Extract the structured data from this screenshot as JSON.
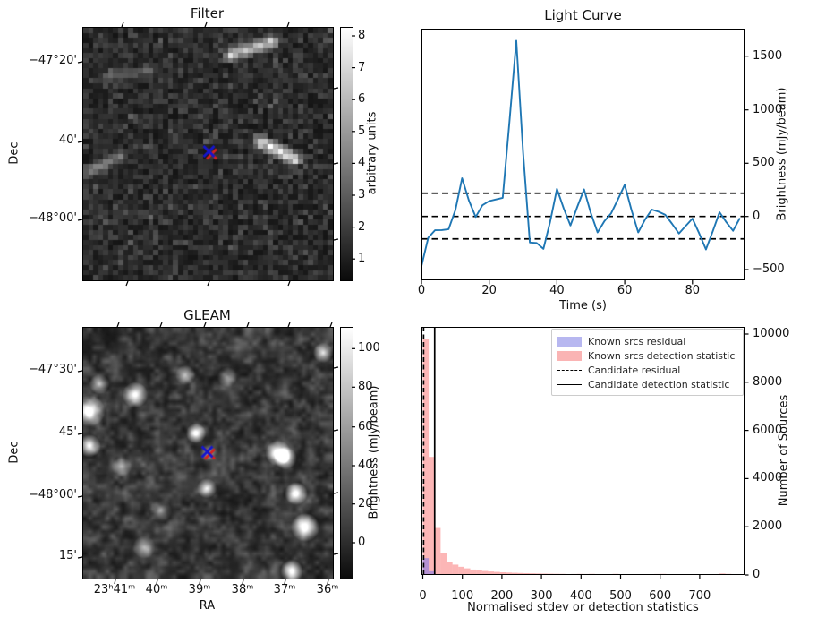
{
  "colors": {
    "line_blue": "#1f77b4",
    "known_residual_fill": "rgba(110,110,240,0.5)",
    "known_detstat_fill": "rgba(250,110,110,0.5)",
    "candidate_line": "#000000",
    "marker_blue": "#1515d0",
    "marker_red": "#d62020"
  },
  "panels": {
    "filter": {
      "title": "Filter",
      "ylabel": "Dec",
      "ytick_labels": [
        "−47°20'",
        "40'",
        "−48°00'"
      ],
      "colorbar": {
        "label": "arbitrary units",
        "ticks": [
          "8",
          "7",
          "6",
          "5",
          "4",
          "3",
          "2",
          "1"
        ]
      }
    },
    "light_curve": {
      "title": "Light Curve",
      "xlabel": "Time (s)",
      "ylabel": "Brightness (mJy/beam)",
      "xtick_labels": [
        "0",
        "20",
        "40",
        "60",
        "80"
      ],
      "ytick_labels": [
        "1500",
        "1000",
        "500",
        "0",
        "−500"
      ]
    },
    "gleam": {
      "title": "GLEAM",
      "xlabel": "RA",
      "ylabel": "Dec",
      "xtick_labels": [
        "23ʰ41ᵐ",
        "40ᵐ",
        "39ᵐ",
        "38ᵐ",
        "37ᵐ",
        "36ᵐ"
      ],
      "ytick_labels": [
        "−47°30'",
        "45'",
        "−48°00'",
        "15'"
      ],
      "colorbar": {
        "label": "Brightness (mJy/beam)",
        "ticks": [
          "100",
          "80",
          "60",
          "40",
          "20",
          "0"
        ]
      }
    },
    "histogram": {
      "xlabel": "Normalised stdev or detection statistics",
      "ylabel": "Number of Sources",
      "xtick_labels": [
        "0",
        "100",
        "200",
        "300",
        "400",
        "500",
        "600",
        "700"
      ],
      "ytick_labels": [
        "0",
        "2000",
        "4000",
        "6000",
        "8000",
        "10000"
      ],
      "legend": [
        {
          "label": "Known srcs residual",
          "swatch": "patch-blue"
        },
        {
          "label": "Known srcs detection statistic",
          "swatch": "patch-pink"
        },
        {
          "label": "Candidate residual",
          "swatch": "dashed-line"
        },
        {
          "label": "Candidate detection statistic",
          "swatch": "solid-line"
        }
      ]
    }
  },
  "chart_data": [
    {
      "type": "heatmap",
      "title": "Filter",
      "ylabel": "Dec",
      "ytick_labels": [
        "−47°20'",
        "40'",
        "−48°00'"
      ],
      "colorbar": {
        "label": "arbitrary units",
        "ticks": [
          1,
          2,
          3,
          4,
          5,
          6,
          7,
          8
        ],
        "range": [
          0.35,
          8.3
        ]
      },
      "image": "50x50 dark grayscale pixel noise, values mostly 1-3 arbitrary units",
      "marker_frac": {
        "x": 0.503,
        "y": 0.49,
        "blue_cross_over_red_cross": true
      },
      "bright_streaks_frac": [
        {
          "x1": 0.575,
          "y1": 0.1,
          "x2": 0.75,
          "y2": 0.045,
          "intensity": 0.85
        },
        {
          "x1": 0.695,
          "y1": 0.44,
          "x2": 0.84,
          "y2": 0.51,
          "intensity": 1.0
        },
        {
          "x1": 0.005,
          "y1": 0.56,
          "x2": 0.14,
          "y2": 0.5,
          "intensity": 0.55
        },
        {
          "x1": 0.08,
          "y1": 0.19,
          "x2": 0.26,
          "y2": 0.16,
          "intensity": 0.42
        }
      ]
    },
    {
      "type": "line",
      "title": "Light Curve",
      "xlabel": "Time (s)",
      "ylabel": "Brightness (mJy/beam)",
      "xticks": [
        0,
        20,
        40,
        60,
        80
      ],
      "yticks": [
        -500,
        0,
        500,
        1000,
        1500
      ],
      "xlim": [
        0,
        95.6
      ],
      "ylim": [
        -590,
        1760
      ],
      "dashed_hlines": [
        219,
        0,
        -211
      ],
      "x": [
        0,
        2,
        4,
        6,
        8,
        10,
        12,
        14,
        16,
        18,
        20,
        22,
        24,
        26,
        28,
        30,
        32,
        34,
        36,
        38,
        40,
        42,
        44,
        46,
        48,
        50,
        52,
        54,
        56,
        58,
        60,
        62,
        64,
        66,
        68,
        70,
        72,
        74,
        76,
        78,
        80,
        82,
        84,
        86,
        88,
        90,
        92,
        94
      ],
      "y": [
        -466,
        -200,
        -130,
        -128,
        -120,
        60,
        360,
        150,
        -5,
        105,
        145,
        160,
        175,
        900,
        1655,
        600,
        -245,
        -250,
        -305,
        -50,
        260,
        75,
        -85,
        90,
        255,
        30,
        -150,
        -45,
        30,
        160,
        298,
        60,
        -150,
        -30,
        65,
        45,
        15,
        -70,
        -160,
        -90,
        -20,
        -160,
        -310,
        -140,
        40,
        -55,
        -135,
        -15
      ]
    },
    {
      "type": "heatmap",
      "title": "GLEAM",
      "xlabel": "RA",
      "ylabel": "Dec",
      "xtick_labels": [
        "23ʰ41ᵐ",
        "40ᵐ",
        "39ᵐ",
        "38ᵐ",
        "37ᵐ",
        "36ᵐ"
      ],
      "ytick_labels": [
        "−47°30'",
        "45'",
        "−48°00'",
        "15'"
      ],
      "colorbar": {
        "label": "Brightness (mJy/beam)",
        "ticks": [
          0,
          20,
          40,
          60,
          80,
          100
        ],
        "range": [
          -18,
          112
        ]
      },
      "image": "smooth blurred grayscale sky map with bright point sources",
      "marker_frac": {
        "x": 0.495,
        "y": 0.493,
        "blue_cross_over_red_cross": true
      },
      "bright_sources_frac": [
        {
          "x": 0.025,
          "y": 0.332,
          "r": 11,
          "i": 1.0
        },
        {
          "x": 0.025,
          "y": 0.471,
          "r": 8,
          "i": 0.95
        },
        {
          "x": 0.208,
          "y": 0.268,
          "r": 9,
          "i": 1.0
        },
        {
          "x": 0.065,
          "y": 0.225,
          "r": 7,
          "i": 0.6
        },
        {
          "x": 0.409,
          "y": 0.189,
          "r": 7,
          "i": 0.55
        },
        {
          "x": 0.452,
          "y": 0.421,
          "r": 7,
          "i": 0.95
        },
        {
          "x": 0.495,
          "y": 0.64,
          "r": 7,
          "i": 0.75
        },
        {
          "x": 0.781,
          "y": 0.5,
          "r": 9,
          "i": 1.0
        },
        {
          "x": 0.81,
          "y": 0.52,
          "r": 8,
          "i": 0.9
        },
        {
          "x": 0.853,
          "y": 0.661,
          "r": 8,
          "i": 0.95
        },
        {
          "x": 0.889,
          "y": 0.796,
          "r": 10,
          "i": 1.0
        },
        {
          "x": 0.835,
          "y": 0.97,
          "r": 8,
          "i": 0.9
        },
        {
          "x": 0.961,
          "y": 0.1,
          "r": 7,
          "i": 0.75
        },
        {
          "x": 0.244,
          "y": 0.875,
          "r": 8,
          "i": 0.45
        },
        {
          "x": 0.577,
          "y": 0.196,
          "r": 7,
          "i": 0.4
        },
        {
          "x": 0.154,
          "y": 0.554,
          "r": 7,
          "i": 0.4
        },
        {
          "x": 0.31,
          "y": 0.73,
          "r": 8,
          "i": 0.35
        },
        {
          "x": 0.5,
          "y": 0.5,
          "r": 6,
          "i": 0.4
        }
      ]
    },
    {
      "type": "bar",
      "title": "",
      "xlabel": "Normalised stdev or detection statistics",
      "ylabel": "Number of Sources",
      "xticks": [
        0,
        100,
        200,
        300,
        400,
        500,
        600,
        700
      ],
      "yticks": [
        0,
        2000,
        4000,
        6000,
        8000,
        10000
      ],
      "xlim": [
        -3.5,
        812
      ],
      "ylim": [
        0,
        10300
      ],
      "bins": {
        "start": 0,
        "width": 15,
        "count": 52
      },
      "series": [
        {
          "name": "Known srcs detection statistic",
          "values": [
            9800,
            4900,
            1950,
            900,
            550,
            430,
            340,
            275,
            225,
            190,
            165,
            145,
            128,
            112,
            100,
            90,
            82,
            75,
            68,
            62,
            57,
            52,
            48,
            45,
            0,
            40,
            45,
            40,
            45,
            38,
            0,
            0,
            45,
            0,
            0,
            0,
            0,
            0,
            0,
            40,
            45,
            0,
            0,
            0,
            0,
            0,
            0,
            0,
            0,
            0,
            60,
            45
          ]
        },
        {
          "name": "Known srcs residual",
          "values": [
            700,
            155,
            35,
            12,
            5,
            2
          ]
        }
      ],
      "vlines": [
        {
          "name": "Candidate residual",
          "x": 2,
          "style": "dashed"
        },
        {
          "name": "Candidate detection statistic",
          "x": 30,
          "style": "solid"
        }
      ],
      "legend_position": "upper right"
    }
  ]
}
